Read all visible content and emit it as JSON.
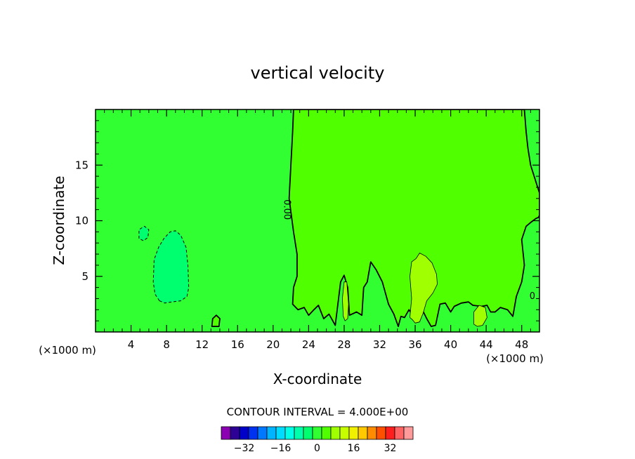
{
  "chart_data": {
    "type": "heatmap",
    "title": "vertical velocity",
    "xlabel": "X-coordinate",
    "ylabel": "Z-coordinate",
    "x_unit_left": "(×1000 m)",
    "x_unit_right": "(×1000 m)",
    "xlim": [
      0,
      50
    ],
    "ylim": [
      0,
      20
    ],
    "xticks": [
      4,
      8,
      12,
      16,
      20,
      24,
      28,
      32,
      36,
      40,
      44,
      48
    ],
    "yticks": [
      5,
      10,
      15
    ],
    "contour_interval_text": "CONTOUR INTERVAL = 4.000E+00",
    "contour_labels": [
      {
        "text": "0.00",
        "x": 21.5,
        "y": 11.0,
        "rotation": 90
      },
      {
        "text": "0",
        "x": 49.2,
        "y": 3.2,
        "rotation": 0
      }
    ],
    "colorbar": {
      "levels": [
        -40,
        -36,
        -32,
        -28,
        -24,
        -20,
        -16,
        -12,
        -8,
        -4,
        0,
        4,
        8,
        12,
        16,
        20,
        24,
        28,
        32,
        36,
        40
      ],
      "colors": [
        "#8c00b4",
        "#2d0096",
        "#0000c8",
        "#0032f0",
        "#0078ff",
        "#00b4ff",
        "#00dcff",
        "#00ffe6",
        "#00ffaa",
        "#00ff6e",
        "#32ff32",
        "#50ff00",
        "#a0ff00",
        "#c8ff00",
        "#f0f000",
        "#ffc800",
        "#ff8c00",
        "#ff5000",
        "#ff1e1e",
        "#ff6464",
        "#ff9b9b"
      ],
      "tick_values": [
        -32,
        -16,
        0,
        16,
        32
      ],
      "tick_labels": [
        "−32",
        "−16",
        "0",
        "16",
        "32"
      ]
    },
    "field": {
      "background_level": 0,
      "regions": [
        {
          "level": 4,
          "desc": "positive-velocity region east of x≈22",
          "polygon": [
            [
              22.3,
              20
            ],
            [
              22.2,
              18
            ],
            [
              22.0,
              15
            ],
            [
              21.8,
              12
            ],
            [
              22.3,
              9
            ],
            [
              22.7,
              7
            ],
            [
              22.7,
              5
            ],
            [
              22.3,
              4
            ],
            [
              22.2,
              2.5
            ],
            [
              22.8,
              2
            ],
            [
              23.5,
              2.2
            ],
            [
              24,
              1.5
            ],
            [
              24.6,
              2
            ],
            [
              25.1,
              2.4
            ],
            [
              25.7,
              1.2
            ],
            [
              26.3,
              1.6
            ],
            [
              27,
              0.6
            ],
            [
              27.6,
              4.5
            ],
            [
              28.0,
              5.1
            ],
            [
              28.4,
              4
            ],
            [
              28.6,
              1.5
            ],
            [
              29.4,
              1.8
            ],
            [
              30.0,
              1.5
            ],
            [
              30.2,
              4
            ],
            [
              30.6,
              4.5
            ],
            [
              31.0,
              6.3
            ],
            [
              31.6,
              5.6
            ],
            [
              32.3,
              4.5
            ],
            [
              33,
              2.5
            ],
            [
              33.6,
              1.6
            ],
            [
              34.1,
              0.5
            ],
            [
              34.4,
              1.4
            ],
            [
              34.8,
              1.3
            ],
            [
              35.3,
              2
            ],
            [
              36,
              1.2
            ],
            [
              36.6,
              1.5
            ],
            [
              36.8,
              2
            ],
            [
              37.3,
              1.2
            ],
            [
              37.8,
              0.5
            ],
            [
              38.3,
              0.6
            ],
            [
              38.8,
              2.5
            ],
            [
              39.4,
              2.6
            ],
            [
              40,
              1.8
            ],
            [
              40.4,
              2.3
            ],
            [
              41.2,
              2.6
            ],
            [
              42,
              2.7
            ],
            [
              42.5,
              2.4
            ],
            [
              43.5,
              2.3
            ],
            [
              44.1,
              2.4
            ],
            [
              44.5,
              1.8
            ],
            [
              45,
              1.8
            ],
            [
              45.6,
              2.2
            ],
            [
              46.4,
              2
            ],
            [
              47,
              1.4
            ],
            [
              47.4,
              3.2
            ],
            [
              48,
              4.5
            ],
            [
              48.3,
              6
            ],
            [
              48.0,
              8.3
            ],
            [
              48.5,
              9.5
            ],
            [
              49.1,
              9.9
            ],
            [
              49.6,
              10.2
            ],
            [
              49.9,
              10.3
            ],
            [
              50,
              10.5
            ],
            [
              50,
              12.5
            ],
            [
              49.6,
              13.5
            ],
            [
              49.0,
              15
            ],
            [
              48.7,
              16.5
            ],
            [
              48.5,
              18
            ],
            [
              48.3,
              20
            ]
          ]
        },
        {
          "level": 8,
          "desc": "peak near x≈37",
          "polygon": [
            [
              35.4,
              1.3
            ],
            [
              35.6,
              3
            ],
            [
              35.4,
              5
            ],
            [
              35.6,
              6.3
            ],
            [
              36.1,
              6.6
            ],
            [
              36.5,
              7.1
            ],
            [
              37.2,
              6.8
            ],
            [
              37.9,
              6.2
            ],
            [
              38.4,
              5.2
            ],
            [
              38.5,
              4.3
            ],
            [
              38.0,
              3.5
            ],
            [
              37.3,
              2.8
            ],
            [
              36.9,
              1.7
            ],
            [
              36.5,
              0.9
            ],
            [
              36.0,
              0.8
            ],
            [
              35.7,
              1.1
            ]
          ]
        },
        {
          "level": 8,
          "desc": "peak near x≈28",
          "polygon": [
            [
              27.9,
              1.4
            ],
            [
              27.8,
              3
            ],
            [
              28.0,
              4.5
            ],
            [
              28.3,
              4.5
            ],
            [
              28.5,
              2.5
            ],
            [
              28.4,
              1.2
            ],
            [
              28.1,
              1.0
            ]
          ]
        },
        {
          "level": 8,
          "desc": "peak near x≈43",
          "polygon": [
            [
              42.6,
              0.7
            ],
            [
              42.6,
              1.8
            ],
            [
              43.2,
              2.4
            ],
            [
              43.9,
              2.2
            ],
            [
              44.1,
              1.3
            ],
            [
              43.6,
              0.6
            ],
            [
              43.0,
              0.5
            ]
          ]
        },
        {
          "level": 4,
          "desc": "small peak near x≈13.5",
          "polygon": [
            [
              13.1,
              0.5
            ],
            [
              13.2,
              1.2
            ],
            [
              13.6,
              1.5
            ],
            [
              14.0,
              1.2
            ],
            [
              13.9,
              0.5
            ]
          ]
        },
        {
          "level": -4,
          "desc": "negative-velocity region near x≈8",
          "polygon": [
            [
              7.2,
              2.8
            ],
            [
              6.7,
              3.4
            ],
            [
              6.5,
              4.5
            ],
            [
              6.6,
              6.5
            ],
            [
              7.1,
              7.6
            ],
            [
              7.7,
              8.4
            ],
            [
              8.4,
              9.0
            ],
            [
              9.0,
              9.1
            ],
            [
              9.6,
              8.7
            ],
            [
              10.2,
              7.6
            ],
            [
              10.4,
              6
            ],
            [
              10.5,
              4
            ],
            [
              10.3,
              3.2
            ],
            [
              9.6,
              2.8
            ],
            [
              8.6,
              2.7
            ],
            [
              7.8,
              2.6
            ]
          ]
        },
        {
          "level": -4,
          "desc": "small negative cell near x≈5.5",
          "polygon": [
            [
              4.9,
              8.4
            ],
            [
              4.9,
              9.2
            ],
            [
              5.5,
              9.5
            ],
            [
              6.0,
              9.2
            ],
            [
              5.9,
              8.5
            ],
            [
              5.4,
              8.2
            ]
          ]
        }
      ]
    }
  }
}
